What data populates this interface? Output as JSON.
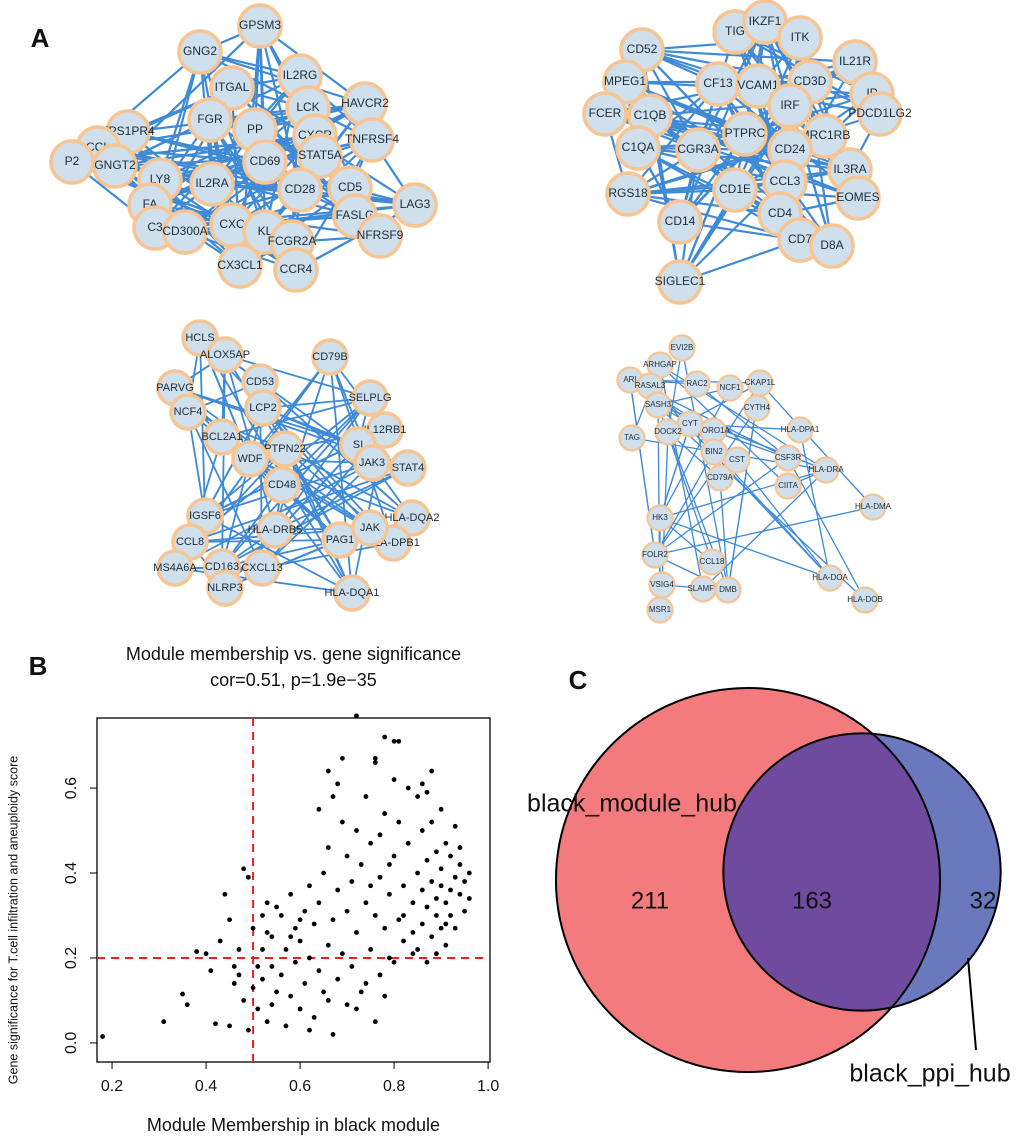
{
  "chart_data": [
    {
      "type": "network",
      "panel": "A",
      "nodes": [
        "GPSM3",
        "GNG2",
        "ITGAL",
        "IL2RG",
        "HAVCR2",
        "LCK",
        "FGR",
        "FPS1PR4",
        "CCL",
        "P2",
        "GNGT2",
        "PP",
        "CXCR",
        "TNFRSF4",
        "STAT5A",
        "CD69",
        "LY8",
        "IL2RA",
        "CD28",
        "CD5",
        "FASLG",
        "LAG3",
        "FA",
        "C3",
        "CD300A",
        "CXC",
        "KL",
        "FCGR2A",
        "NFRSF9",
        "CX3CL1",
        "CCR4"
      ]
    },
    {
      "type": "network",
      "nodes": [
        "TIG",
        "IKZF1",
        "ITK",
        "CD52",
        "IL21R",
        "MPEG1",
        "CF13",
        "VCAM1",
        "CD3D",
        "IP",
        "FCER",
        "C1QB",
        "IRF",
        "PDCD1LG2",
        "PTPRC",
        "MRC1RB",
        "C1QA",
        "CGR3A",
        "CD24",
        "IL3RA",
        "RGS18",
        "CD1E",
        "CCL3",
        "EOMES",
        "CD14",
        "CD4",
        "CD7",
        "D8A",
        "SIGLEC1"
      ]
    },
    {
      "type": "network",
      "nodes": [
        "HCLS",
        "ALOX5AP",
        "CD79B",
        "PARVG",
        "CD53",
        "SELPLG",
        "NCF4",
        "LCP2",
        "IL12RB1",
        "BCL2A1",
        "PTPN22",
        "SI",
        "JAK3",
        "STAT4",
        "WDF",
        "CD48",
        "IGSF6",
        "HLA-DRB5",
        "HLA-DQA2",
        "PAG1",
        "HLA-DPB1",
        "CCL8",
        "MS4A6A",
        "CD163",
        "CXCL13",
        "NLRP3",
        "HLA-DQA1",
        "JAK"
      ]
    },
    {
      "type": "network",
      "nodes": [
        "EVI2B",
        "ARHGAP",
        "ARI",
        "RASAL3",
        "RAC2",
        "NCF1",
        "CKAP1L",
        "SASH3",
        "CYTH4",
        "HLA-DPA1",
        "CORO1A",
        "CYT",
        "DOCK2",
        "TAG",
        "BIN2",
        "CST",
        "CSF3R",
        "HLA-DRA",
        "CD79A",
        "CIITA",
        "HLA-DMA",
        "HK3",
        "FOLR2",
        "CCL18",
        "VSIG4",
        "SLAMF8",
        "DMB",
        "HLA-DOA",
        "HLA-DOB",
        "MSR1"
      ]
    },
    {
      "type": "scatter",
      "panel": "B",
      "title": "Module membership vs. gene significance",
      "subtitle": "cor=0.51, p=1.9e−35",
      "xlabel": "Module Membership in black module",
      "ylabel": "Gene significance for  T.cell infiltration and aneuploidy score",
      "color": "#000000",
      "line_color": "#e8211f",
      "vline": 0.5,
      "hline": 0.2,
      "xlim": [
        0.168,
        1.004
      ],
      "ylim": [
        -0.045,
        0.765
      ],
      "xticks": [
        0.2,
        0.4,
        0.6,
        0.8,
        {
          "value": 1,
          "label": "1.0"
        }
      ],
      "yticks": [
        {
          "value": 0,
          "label": "0.0"
        },
        0.2,
        0.4,
        0.6
      ],
      "x": [
        0.18,
        0.31,
        0.35,
        0.36,
        0.38,
        0.4,
        0.41,
        0.42,
        0.43,
        0.44,
        0.45,
        0.46,
        0.47,
        0.48,
        0.49,
        0.72,
        0.78,
        0.8,
        0.81,
        0.69,
        0.66,
        0.76,
        0.5,
        0.51,
        0.52,
        0.52,
        0.53,
        0.53,
        0.54,
        0.54,
        0.55,
        0.55,
        0.49,
        0.5,
        0.51,
        0.48,
        0.47,
        0.46,
        0.45,
        0.52,
        0.53,
        0.54,
        0.56,
        0.56,
        0.57,
        0.57,
        0.58,
        0.58,
        0.59,
        0.59,
        0.6,
        0.6,
        0.61,
        0.61,
        0.62,
        0.62,
        0.63,
        0.63,
        0.64,
        0.64,
        0.65,
        0.65,
        0.66,
        0.66,
        0.67,
        0.67,
        0.68,
        0.68,
        0.69,
        0.69,
        0.7,
        0.7,
        0.6,
        0.62,
        0.58,
        0.66,
        0.64,
        0.68,
        0.67,
        0.7,
        0.71,
        0.71,
        0.72,
        0.72,
        0.73,
        0.73,
        0.74,
        0.74,
        0.75,
        0.75,
        0.76,
        0.76,
        0.77,
        0.77,
        0.78,
        0.78,
        0.79,
        0.79,
        0.8,
        0.8,
        0.81,
        0.81,
        0.82,
        0.82,
        0.83,
        0.83,
        0.84,
        0.84,
        0.85,
        0.85,
        0.72,
        0.74,
        0.76,
        0.78,
        0.8,
        0.82,
        0.84,
        0.79,
        0.77,
        0.75,
        0.86,
        0.86,
        0.86,
        0.87,
        0.87,
        0.87,
        0.88,
        0.88,
        0.88,
        0.89,
        0.89,
        0.89,
        0.9,
        0.9,
        0.9,
        0.91,
        0.91,
        0.91,
        0.92,
        0.92,
        0.92,
        0.93,
        0.93,
        0.93,
        0.94,
        0.94,
        0.95,
        0.95,
        0.96,
        0.96,
        0.85,
        0.87,
        0.89,
        0.91,
        0.88,
        0.86,
        0.9,
        0.94
      ],
      "y": [
        0.015,
        0.05,
        0.115,
        0.09,
        0.215,
        0.21,
        0.17,
        0.045,
        0.24,
        0.35,
        0.29,
        0.18,
        0.16,
        0.41,
        0.39,
        0.77,
        0.72,
        0.71,
        0.71,
        0.67,
        0.64,
        0.67,
        0.13,
        0.08,
        0.22,
        0.3,
        0.33,
        0.05,
        0.18,
        0.25,
        0.12,
        0.32,
        0.03,
        0.27,
        0.18,
        0.1,
        0.22,
        0.14,
        0.04,
        0.15,
        0.26,
        0.09,
        0.16,
        0.3,
        0.22,
        0.04,
        0.35,
        0.11,
        0.27,
        0.19,
        0.08,
        0.24,
        0.31,
        0.14,
        0.2,
        0.37,
        0.06,
        0.28,
        0.17,
        0.33,
        0.4,
        0.12,
        0.23,
        0.46,
        0.02,
        0.29,
        0.36,
        0.15,
        0.52,
        0.21,
        0.09,
        0.44,
        0.29,
        0.03,
        0.25,
        0.1,
        0.55,
        0.61,
        0.58,
        0.31,
        0.38,
        0.18,
        0.5,
        0.26,
        0.12,
        0.42,
        0.33,
        0.58,
        0.22,
        0.47,
        0.3,
        0.66,
        0.16,
        0.39,
        0.54,
        0.27,
        0.35,
        0.2,
        0.44,
        0.62,
        0.29,
        0.52,
        0.37,
        0.24,
        0.47,
        0.6,
        0.33,
        0.21,
        0.4,
        0.58,
        0.08,
        0.14,
        0.05,
        0.11,
        0.19,
        0.3,
        0.26,
        0.42,
        0.49,
        0.37,
        0.28,
        0.36,
        0.5,
        0.32,
        0.43,
        0.59,
        0.25,
        0.38,
        0.52,
        0.3,
        0.45,
        0.34,
        0.27,
        0.41,
        0.55,
        0.33,
        0.47,
        0.23,
        0.36,
        0.44,
        0.3,
        0.39,
        0.51,
        0.27,
        0.35,
        0.42,
        0.38,
        0.31,
        0.34,
        0.4,
        0.22,
        0.19,
        0.21,
        0.28,
        0.64,
        0.61,
        0.37,
        0.46
      ]
    },
    {
      "type": "venn",
      "panel": "C",
      "sets": [
        {
          "name": "black_module_hub",
          "color": "#f37a7d"
        },
        {
          "name": "black_ppi_hub",
          "color": "#6a78be"
        }
      ],
      "overlap_color": "#6f4a9e",
      "values": [
        211,
        163,
        32
      ]
    }
  ]
}
